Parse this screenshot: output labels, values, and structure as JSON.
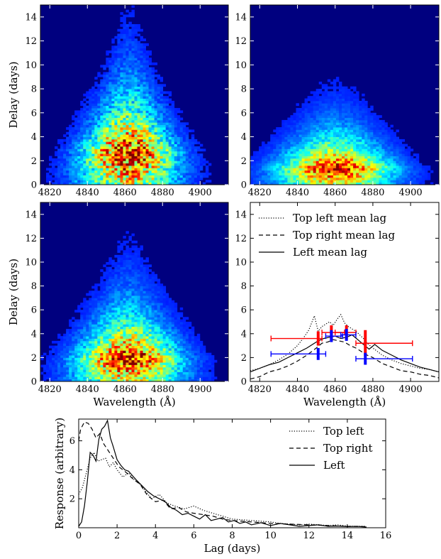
{
  "chart_data": [
    {
      "type": "heatmap",
      "panel": "top-left",
      "xlabel": "",
      "ylabel": "Delay (days)",
      "xlim": [
        4815,
        4915
      ],
      "ylim": [
        0,
        15
      ],
      "xticks": [
        4820,
        4840,
        4860,
        4880,
        4900
      ],
      "yticks": [
        0,
        2,
        4,
        6,
        8,
        10,
        12,
        14
      ],
      "colormap": "jet",
      "background": "#00007f",
      "profile": {
        "center": 4862,
        "width_base": 26,
        "width_slope": -1.4,
        "decay_scale": 3.6,
        "peak_delay": 2.8,
        "noise": 0.9
      }
    },
    {
      "type": "heatmap",
      "panel": "top-right",
      "xlabel": "",
      "ylabel": "",
      "xlim": [
        4815,
        4915
      ],
      "ylim": [
        0,
        15
      ],
      "xticks": [
        4820,
        4840,
        4860,
        4880,
        4900
      ],
      "yticks": [
        0,
        2,
        4,
        6,
        8,
        10,
        12,
        14
      ],
      "colormap": "jet",
      "background": "#00007f",
      "profile": {
        "center": 4860,
        "width_base": 30,
        "width_slope": -1.6,
        "decay_scale": 2.2,
        "peak_delay": 1.4,
        "noise": 0.6
      }
    },
    {
      "type": "heatmap",
      "panel": "middle-left",
      "xlabel": "Wavelength (Å)",
      "ylabel": "Delay (days)",
      "xlim": [
        4815,
        4915
      ],
      "ylim": [
        0,
        15
      ],
      "xticks": [
        4820,
        4840,
        4860,
        4880,
        4900
      ],
      "yticks": [
        0,
        2,
        4,
        6,
        8,
        10,
        12,
        14
      ],
      "colormap": "jet",
      "background": "#00007f",
      "profile": {
        "center": 4862,
        "width_base": 28,
        "width_slope": -1.5,
        "decay_scale": 3.0,
        "peak_delay": 2.0,
        "noise": 0.75
      }
    },
    {
      "type": "line",
      "panel": "middle-right",
      "xlabel": "Wavelength (Å)",
      "ylabel": "",
      "xlim": [
        4815,
        4915
      ],
      "ylim": [
        0,
        15
      ],
      "xticks": [
        4820,
        4840,
        4860,
        4880,
        4900
      ],
      "yticks": [
        0,
        2,
        4,
        6,
        8,
        10,
        12,
        14
      ],
      "legend": "top-left",
      "series": [
        {
          "name": "Top left mean lag",
          "style": "dotted",
          "x": [
            4815,
            4820,
            4825,
            4830,
            4835,
            4840,
            4843,
            4846,
            4849,
            4851,
            4853,
            4855,
            4857,
            4859,
            4861,
            4863,
            4865,
            4867,
            4869,
            4871,
            4873,
            4875,
            4877,
            4880,
            4885,
            4890,
            4895,
            4900,
            4905,
            4910,
            4915
          ],
          "y": [
            0.9,
            1.1,
            1.4,
            1.8,
            2.3,
            3.0,
            3.6,
            4.3,
            5.5,
            4.2,
            4.6,
            4.8,
            5.0,
            4.7,
            5.2,
            5.6,
            4.9,
            4.6,
            4.4,
            4.2,
            3.9,
            3.6,
            3.2,
            2.8,
            2.2,
            1.8,
            1.5,
            1.3,
            1.1,
            1.0,
            0.8
          ]
        },
        {
          "name": "Top right mean lag",
          "style": "dashed",
          "x": [
            4815,
            4820,
            4825,
            4830,
            4835,
            4840,
            4845,
            4850,
            4853,
            4856,
            4859,
            4862,
            4865,
            4868,
            4871,
            4874,
            4877,
            4880,
            4885,
            4890,
            4895,
            4900,
            4905,
            4910,
            4915
          ],
          "y": [
            0.2,
            0.4,
            0.8,
            1.0,
            1.3,
            1.7,
            2.2,
            2.8,
            3.2,
            3.3,
            3.5,
            3.4,
            3.3,
            3.0,
            2.8,
            2.5,
            2.2,
            2.0,
            1.5,
            1.2,
            0.9,
            0.8,
            0.6,
            0.5,
            0.3
          ]
        },
        {
          "name": "Left mean lag",
          "style": "solid",
          "x": [
            4815,
            4820,
            4825,
            4830,
            4835,
            4840,
            4845,
            4848,
            4851,
            4854,
            4857,
            4860,
            4863,
            4866,
            4869,
            4872,
            4875,
            4878,
            4881,
            4885,
            4890,
            4895,
            4900,
            4905,
            4910,
            4915
          ],
          "y": [
            0.8,
            1.1,
            1.4,
            1.6,
            2.0,
            2.4,
            2.8,
            3.1,
            3.4,
            3.6,
            3.7,
            3.8,
            3.6,
            3.7,
            3.9,
            3.5,
            3.1,
            2.7,
            3.1,
            2.6,
            2.2,
            1.8,
            1.5,
            1.2,
            1.0,
            0.8
          ]
        }
      ],
      "errorbars": [
        {
          "color": "#ff0000",
          "x": 4851,
          "y": 3.6,
          "xerr_low": 4826,
          "xerr_high": 4853,
          "yerr": 0.6
        },
        {
          "color": "#ff0000",
          "x": 4858,
          "y": 4.1,
          "xerr_low": 4853,
          "xerr_high": 4865,
          "yerr": 0.6
        },
        {
          "color": "#ff0000",
          "x": 4866,
          "y": 4.1,
          "xerr_low": 4860,
          "xerr_high": 4871,
          "yerr": 0.6
        },
        {
          "color": "#ff0000",
          "x": 4876,
          "y": 3.2,
          "xerr_low": 4871,
          "xerr_high": 4901,
          "yerr": 1.1
        },
        {
          "color": "#0000ff",
          "x": 4851,
          "y": 2.3,
          "xerr_low": 4826,
          "xerr_high": 4855,
          "yerr": 0.5
        },
        {
          "color": "#0000ff",
          "x": 4858,
          "y": 3.8,
          "xerr_low": 4855,
          "xerr_high": 4864,
          "yerr": 0.5
        },
        {
          "color": "#0000ff",
          "x": 4866,
          "y": 3.9,
          "xerr_low": 4863,
          "xerr_high": 4871,
          "yerr": 0.5
        },
        {
          "color": "#0000ff",
          "x": 4876,
          "y": 1.9,
          "xerr_low": 4871,
          "xerr_high": 4901,
          "yerr": 0.5
        }
      ]
    },
    {
      "type": "line",
      "panel": "bottom",
      "xlabel": "Lag (days)",
      "ylabel": "Response (arbitrary)",
      "xlim": [
        0,
        16
      ],
      "ylim": [
        0,
        7.5
      ],
      "xticks": [
        0,
        2,
        4,
        6,
        8,
        10,
        12,
        14,
        16
      ],
      "yticks": [
        2,
        4,
        6
      ],
      "legend": "top-right",
      "series": [
        {
          "name": "Top left",
          "style": "dotted",
          "x": [
            0,
            0.2,
            0.4,
            0.6,
            0.8,
            1.0,
            1.2,
            1.4,
            1.6,
            1.8,
            2.0,
            2.3,
            2.6,
            2.9,
            3.2,
            3.5,
            3.8,
            4.2,
            4.6,
            5.0,
            5.5,
            6.0,
            6.5,
            7.0,
            7.5,
            8.0,
            8.5,
            9.0,
            9.5,
            10.0,
            10.5,
            11.0,
            11.5,
            12.0,
            12.5,
            13.0,
            13.5,
            14.0,
            14.5,
            15.0
          ],
          "y": [
            2.3,
            2.8,
            3.8,
            4.8,
            5.2,
            4.6,
            4.7,
            4.8,
            4.2,
            4.5,
            4.0,
            3.5,
            3.8,
            3.3,
            3.0,
            2.5,
            2.0,
            2.3,
            1.7,
            1.5,
            1.3,
            1.5,
            1.2,
            1.0,
            0.8,
            0.6,
            0.55,
            0.5,
            0.45,
            0.4,
            0.3,
            0.25,
            0.2,
            0.25,
            0.2,
            0.15,
            0.2,
            0.12,
            0.1,
            0.1
          ]
        },
        {
          "name": "Top right",
          "style": "dashed",
          "x": [
            0,
            0.1,
            0.3,
            0.5,
            0.7,
            0.9,
            1.1,
            1.3,
            1.5,
            1.8,
            2.1,
            2.4,
            2.8,
            3.2,
            3.6,
            4.0,
            4.4,
            4.8,
            5.2,
            5.6,
            6.0,
            6.5,
            7.0,
            7.5,
            8.0,
            8.5,
            9.0,
            9.5,
            10.0,
            11.0,
            12.0,
            13.0,
            14.0,
            15.0
          ],
          "y": [
            6.0,
            6.8,
            7.3,
            7.2,
            6.8,
            6.2,
            6.5,
            5.8,
            5.4,
            4.8,
            4.2,
            3.9,
            3.4,
            3.0,
            2.2,
            1.8,
            1.9,
            1.3,
            1.4,
            1.1,
            1.0,
            0.9,
            0.8,
            0.6,
            0.5,
            0.45,
            0.4,
            0.35,
            0.3,
            0.25,
            0.2,
            0.15,
            0.1,
            0.08
          ]
        },
        {
          "name": "Left",
          "style": "solid",
          "x": [
            0,
            0.15,
            0.3,
            0.45,
            0.6,
            0.75,
            0.9,
            1.05,
            1.2,
            1.35,
            1.5,
            1.65,
            1.8,
            2.0,
            2.2,
            2.4,
            2.6,
            2.8,
            3.0,
            3.3,
            3.6,
            3.9,
            4.2,
            4.5,
            4.8,
            5.1,
            5.4,
            5.7,
            6.0,
            6.3,
            6.6,
            6.9,
            7.2,
            7.5,
            7.8,
            8.1,
            8.4,
            8.7,
            9.0,
            9.5,
            10.0,
            10.5,
            11.0,
            11.5,
            12.0,
            12.5,
            13.0,
            13.5,
            14.0,
            14.5,
            15.0
          ],
          "y": [
            0.1,
            0.4,
            1.5,
            3.2,
            5.2,
            5.0,
            4.6,
            6.1,
            6.8,
            7.0,
            7.4,
            6.2,
            5.6,
            4.7,
            4.3,
            4.0,
            3.9,
            3.6,
            3.3,
            2.9,
            2.5,
            2.2,
            2.0,
            1.8,
            1.4,
            1.2,
            0.9,
            1.0,
            0.8,
            0.6,
            0.9,
            0.5,
            0.6,
            0.7,
            0.4,
            0.5,
            0.3,
            0.4,
            0.2,
            0.35,
            0.15,
            0.3,
            0.2,
            0.1,
            0.15,
            0.2,
            0.1,
            0.12,
            0.08,
            0.1,
            0.05
          ]
        }
      ]
    }
  ]
}
